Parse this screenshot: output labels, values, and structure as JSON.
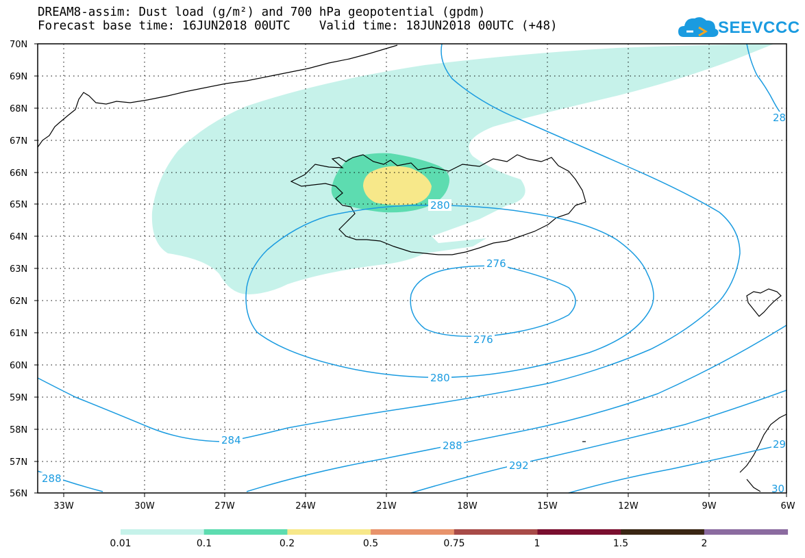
{
  "title": {
    "line1": "DREAM8-assim: Dust load (g/m²) and 700 hPa geopotential (gpdm)",
    "line2": "Forecast base time: 16JUN2018 00UTC    Valid time: 18JUN2018 00UTC (+48)"
  },
  "logo": {
    "text": "SEEVCCC",
    "icon": "cloud-icon"
  },
  "map": {
    "lat_labels": [
      "70N",
      "69N",
      "68N",
      "67N",
      "66N",
      "65N",
      "64N",
      "63N",
      "62N",
      "61N",
      "60N",
      "59N",
      "58N",
      "57N",
      "56N"
    ],
    "lon_labels": [
      "33W",
      "30W",
      "27W",
      "24W",
      "21W",
      "18W",
      "15W",
      "12W",
      "9W",
      "6W"
    ],
    "contour_color": "#1a9be0",
    "contour_labels": [
      {
        "id": "c280a",
        "text": "280"
      },
      {
        "id": "c276a",
        "text": "276"
      },
      {
        "id": "c276b",
        "text": "276"
      },
      {
        "id": "c280b",
        "text": "280"
      },
      {
        "id": "c284",
        "text": "284"
      },
      {
        "id": "c288a",
        "text": "288"
      },
      {
        "id": "c288b",
        "text": "288"
      },
      {
        "id": "c292",
        "text": "292"
      },
      {
        "id": "c28x",
        "text": "28"
      },
      {
        "id": "c29x",
        "text": "29"
      },
      {
        "id": "c30x",
        "text": "30"
      }
    ]
  },
  "colorbar": {
    "labels": [
      "0.01",
      "0.1",
      "0.2",
      "0.5",
      "0.75",
      "1",
      "1.5",
      "2"
    ],
    "colors": [
      "#c6f2ea",
      "#5ddcb0",
      "#f7e88a",
      "#e8936b",
      "#a84b48",
      "#7a0f2f",
      "#3a2614",
      "#8b6ba0"
    ]
  }
}
